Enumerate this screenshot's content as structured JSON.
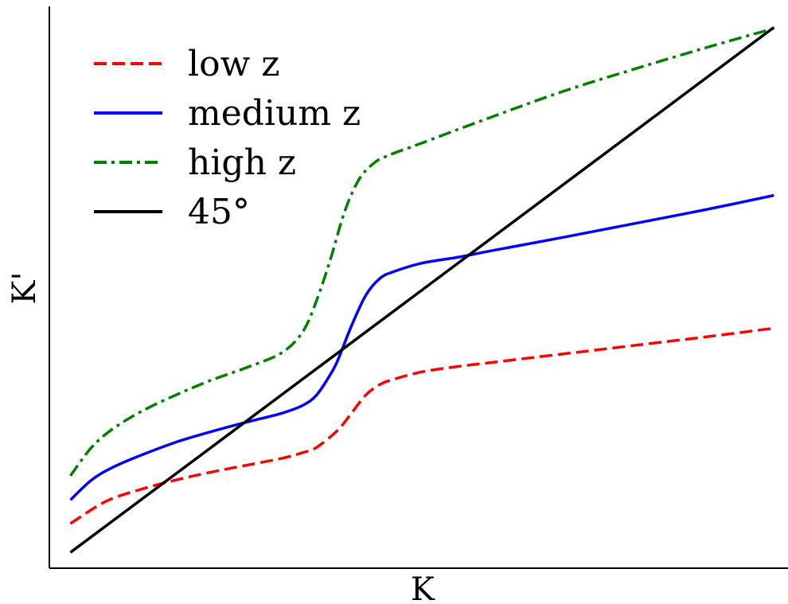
{
  "chart_data": {
    "type": "line",
    "title": "",
    "xlabel": "K",
    "ylabel": "K'",
    "ticks": "none",
    "grid": false,
    "legend_position": "top-left",
    "xlim": [
      -0.03,
      1.02
    ],
    "ylim": [
      -0.03,
      1.04
    ],
    "series": [
      {
        "name": "low z",
        "color": "#ff0000",
        "style": "dashed",
        "x": [
          0.0,
          0.05,
          0.1,
          0.15,
          0.2,
          0.25,
          0.3,
          0.33,
          0.35,
          0.38,
          0.4,
          0.42,
          0.44,
          0.46,
          0.5,
          0.55,
          0.6,
          0.7,
          0.8,
          0.9,
          1.0
        ],
        "y": [
          0.055,
          0.097,
          0.12,
          0.138,
          0.153,
          0.166,
          0.179,
          0.19,
          0.2,
          0.233,
          0.266,
          0.3,
          0.32,
          0.33,
          0.344,
          0.354,
          0.362,
          0.378,
          0.394,
          0.41,
          0.427
        ]
      },
      {
        "name": "medium z",
        "color": "#0000ff",
        "style": "solid",
        "x": [
          0.0,
          0.03,
          0.06,
          0.1,
          0.15,
          0.2,
          0.25,
          0.3,
          0.33,
          0.35,
          0.37,
          0.38,
          0.4,
          0.42,
          0.44,
          0.46,
          0.5,
          0.55,
          0.6,
          0.7,
          0.8,
          0.9,
          1.0
        ],
        "y": [
          0.1,
          0.138,
          0.162,
          0.185,
          0.21,
          0.23,
          0.248,
          0.265,
          0.28,
          0.3,
          0.34,
          0.366,
          0.433,
          0.49,
          0.522,
          0.535,
          0.551,
          0.562,
          0.575,
          0.6,
          0.626,
          0.652,
          0.68
        ]
      },
      {
        "name": "high z",
        "color": "#008000",
        "style": "dashdot",
        "x": [
          0.0,
          0.03,
          0.06,
          0.1,
          0.15,
          0.2,
          0.25,
          0.3,
          0.33,
          0.35,
          0.37,
          0.39,
          0.41,
          0.43,
          0.45,
          0.5,
          0.6,
          0.7,
          0.8,
          0.9,
          1.0
        ],
        "y": [
          0.146,
          0.2,
          0.235,
          0.268,
          0.3,
          0.328,
          0.352,
          0.38,
          0.42,
          0.48,
          0.56,
          0.65,
          0.71,
          0.74,
          0.755,
          0.78,
          0.83,
          0.878,
          0.92,
          0.96,
          0.998
        ]
      },
      {
        "name": "45°",
        "color": "#000000",
        "style": "solid",
        "x": [
          0.0,
          1.0
        ],
        "y": [
          0.0,
          1.0
        ]
      }
    ]
  }
}
